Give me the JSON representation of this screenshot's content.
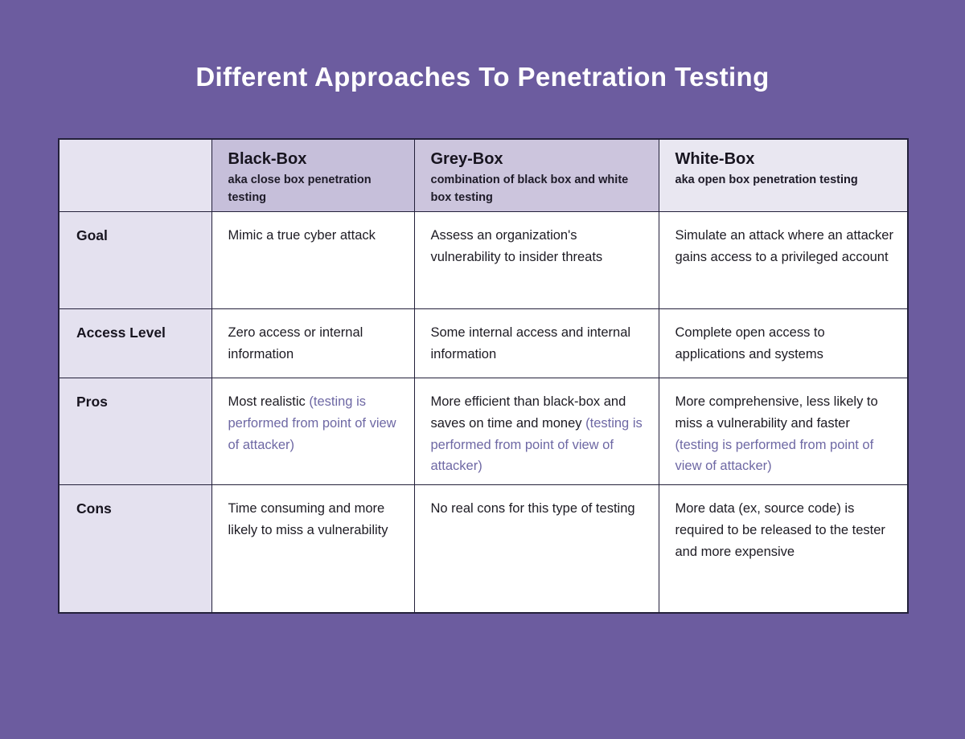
{
  "page": {
    "title": "Different Approaches To Penetration Testing"
  },
  "colors": {
    "background": "#6C5C9F",
    "table_border": "#23203A",
    "header_black_box_bg": "#C6BFDA",
    "header_grey_box_bg": "#CCC5DD",
    "header_white_box_bg": "#E9E7F1",
    "label_column_bg": "#E4E1EF",
    "body_cell_bg": "#FFFFFF",
    "title_text": "#FFFFFF",
    "body_text": "#1D1B23",
    "note_text": "#6E68A4"
  },
  "table": {
    "columns": [
      {
        "name": "Black-Box",
        "subtitle": "aka close box penetration testing"
      },
      {
        "name": "Grey-Box",
        "subtitle": "combination of black box and white box testing"
      },
      {
        "name": "White-Box",
        "subtitle": "aka open box penetration testing"
      }
    ],
    "rows": [
      {
        "label": "Goal",
        "cells": [
          {
            "main": "Mimic a true cyber attack"
          },
          {
            "main": "Assess an organization's vulnerability to insider threats"
          },
          {
            "main": "Simulate an attack where an attacker gains access to a privileged account"
          }
        ]
      },
      {
        "label": "Access Level",
        "cells": [
          {
            "main": "Zero access or internal information"
          },
          {
            "main": "Some internal access and internal information"
          },
          {
            "main": "Complete open access to applications and systems"
          }
        ]
      },
      {
        "label": "Pros",
        "cells": [
          {
            "main": "Most realistic",
            "note": "(testing is performed from point of view of attacker)"
          },
          {
            "main": "More efficient than black-box and saves on time and money",
            "note": "(testing is performed from point of view of attacker)"
          },
          {
            "main": "More comprehensive, less likely to miss a vulnerability and faster",
            "note": "(testing is performed from point of view of attacker)"
          }
        ]
      },
      {
        "label": "Cons",
        "cells": [
          {
            "main": "Time consuming and more likely to miss a vulnerability"
          },
          {
            "main": "No real cons for this type of testing"
          },
          {
            "main": "More data (ex, source code) is required to be released to the tester and more expensive"
          }
        ]
      }
    ]
  },
  "chart_data": {
    "type": "table",
    "title": "Different Approaches To Penetration Testing",
    "columns": [
      "",
      "Black-Box (aka close box penetration testing)",
      "Grey-Box (combination of black box and white box testing)",
      "White-Box (aka open box penetration testing)"
    ],
    "rows": [
      [
        "Goal",
        "Mimic a true cyber attack",
        "Assess an organization's vulnerability to insider threats",
        "Simulate an attack where an attacker gains access to a privileged account"
      ],
      [
        "Access Level",
        "Zero access or internal information",
        "Some internal access and internal information",
        "Complete open access to applications and systems"
      ],
      [
        "Pros",
        "Most realistic (testing is performed from point of view of attacker)",
        "More efficient than black-box and saves on time and money (testing is performed from point of view of attacker)",
        "More comprehensive, less likely to miss a vulnerability and faster (testing is performed from point of view of attacker)"
      ],
      [
        "Cons",
        "Time consuming and more likely to miss a vulnerability",
        "No real cons for this type of testing",
        "More data (ex, source code) is required to be released to the tester and more expensive"
      ]
    ]
  }
}
